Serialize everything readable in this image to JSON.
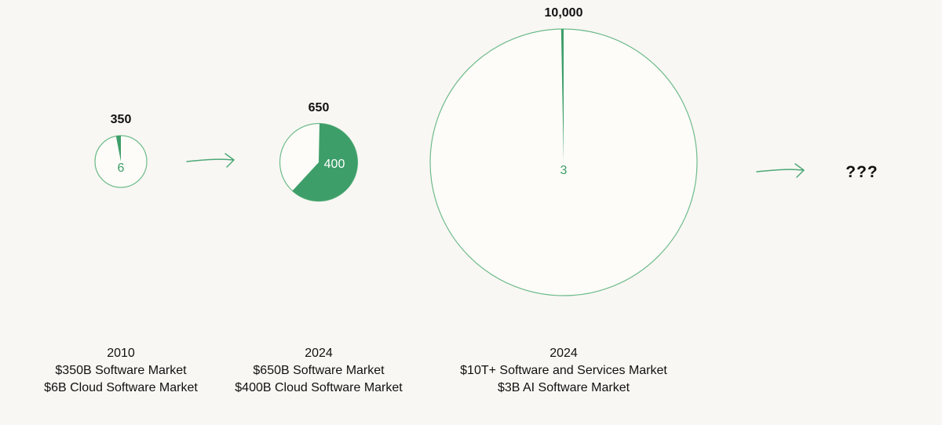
{
  "chart_data": [
    {
      "type": "pie",
      "total": 350,
      "total_label": "350",
      "slice_value": 6,
      "slice_label": "6",
      "caption": {
        "year": "2010",
        "line1": "$350B Software Market",
        "line2": "$6B Cloud Software Market"
      }
    },
    {
      "type": "pie",
      "total": 650,
      "total_label": "650",
      "slice_value": 400,
      "slice_label": "400",
      "caption": {
        "year": "2024",
        "line1": "$650B Software Market",
        "line2": "$400B Cloud Software Market"
      }
    },
    {
      "type": "pie",
      "total": 10000,
      "total_label": "10,000",
      "slice_value": 3,
      "slice_label": "3",
      "caption": {
        "year": "2024",
        "line1": "$10T+ Software and Services Market",
        "line2": "$3B AI Software Market"
      }
    }
  ],
  "next_label": "???",
  "colors": {
    "slice": "#3E9E69",
    "outline": "#6DBB8C",
    "pie_bg": "#FDFCF8",
    "arrow": "#4DA878",
    "page_bg": "#F9F7F3"
  }
}
